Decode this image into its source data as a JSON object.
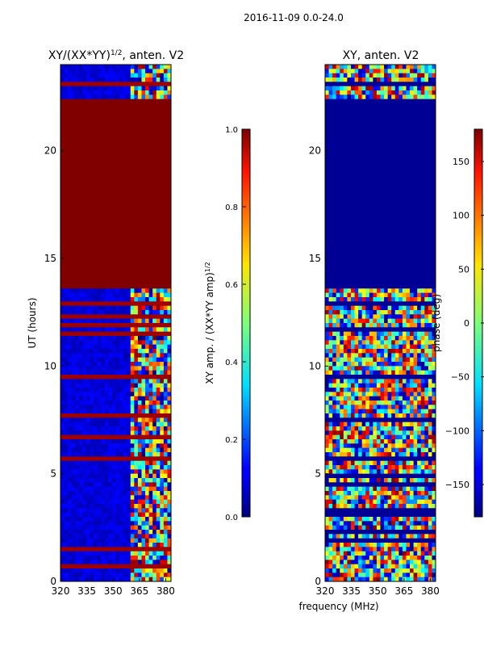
{
  "suptitle": "2016-11-09 0.0-24.0",
  "shared_xlabel": "frequency (MHz)",
  "chart_data": [
    {
      "type": "heatmap",
      "title_main": "XY/(XX*YY)",
      "title_sup": "1/2",
      "title_tail": ", anten. V2",
      "ylabel": "UT (hours)",
      "xlim": [
        320,
        383
      ],
      "ylim": [
        0,
        24
      ],
      "xticks": [
        320,
        335,
        350,
        365,
        380
      ],
      "yticks": [
        0,
        5,
        10,
        15,
        20
      ],
      "colorbar": {
        "label_main": "XY amp. / (XX*YY amp)",
        "label_sup": "1/2",
        "range": [
          0.0,
          1.0
        ],
        "ticks": [
          "0.0",
          "0.2",
          "0.4",
          "0.6",
          "0.8",
          "1.0"
        ],
        "tick_values": [
          0.0,
          0.2,
          0.4,
          0.6,
          0.8,
          1.0
        ],
        "colormap": "jet"
      },
      "saturated_bands_hours": [
        [
          13.7,
          20.5
        ],
        [
          20.7,
          22.3
        ]
      ],
      "noisy_band_mhz": [
        360,
        383
      ],
      "background_value": 0.05
    },
    {
      "type": "heatmap",
      "title": "XY, anten. V2",
      "xlim": [
        320,
        383
      ],
      "ylim": [
        0,
        24
      ],
      "xticks": [
        320,
        335,
        350,
        365,
        380
      ],
      "yticks": [
        0,
        5,
        10,
        15,
        20
      ],
      "colorbar": {
        "label": "phase (deg)",
        "range": [
          -180,
          180
        ],
        "ticks": [
          "150",
          "100",
          "50",
          "0",
          "−50",
          "−100",
          "−150"
        ],
        "tick_values": [
          150,
          100,
          50,
          0,
          -50,
          -100,
          -150
        ],
        "colormap": "jet"
      },
      "empty_bands_hours": [
        [
          13.7,
          20.5
        ],
        [
          20.7,
          22.3
        ]
      ]
    }
  ]
}
